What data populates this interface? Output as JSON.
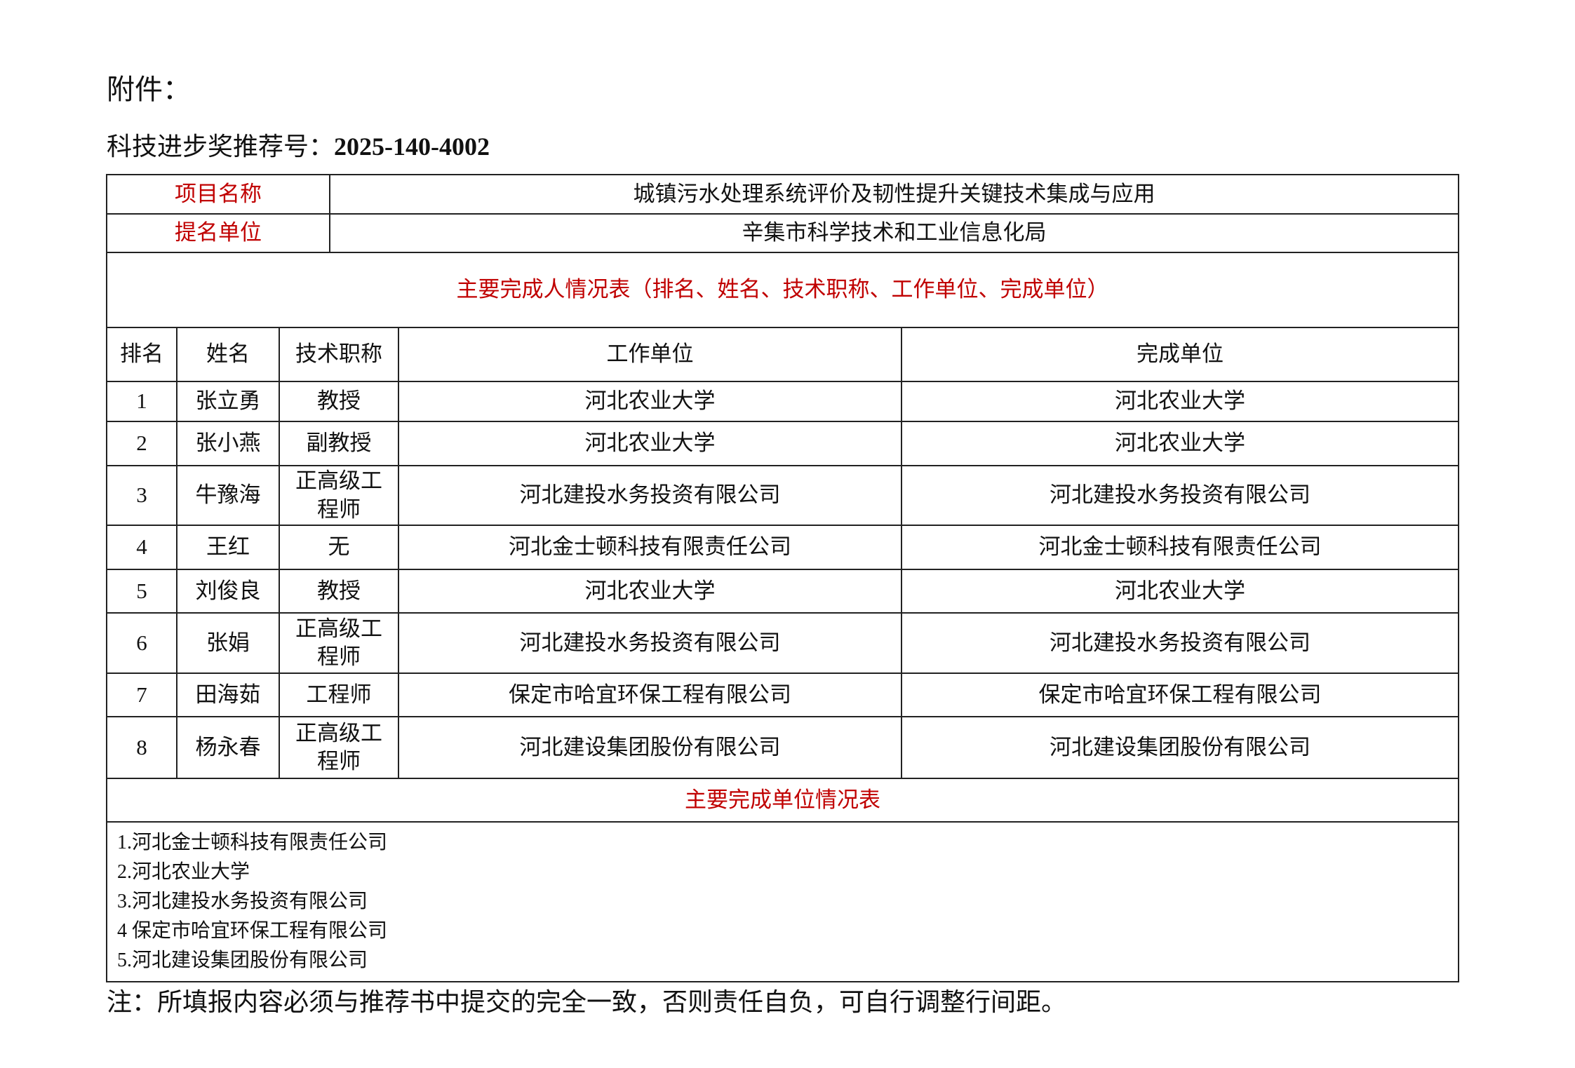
{
  "attachment_label": "附件：",
  "recommendation": {
    "label": "科技进步奖推荐号：",
    "number": "2025-140-4002"
  },
  "project": {
    "label": "项目名称",
    "value": "城镇污水处理系统评价及韧性提升关键技术集成与应用"
  },
  "nominator": {
    "label": "提名单位",
    "value": "辛集市科学技术和工业信息化局"
  },
  "persons_section_title": "主要完成人情况表（排名、姓名、技术职称、工作单位、完成单位）",
  "columns": [
    "排名",
    "姓名",
    "技术职称",
    "工作单位",
    "完成单位"
  ],
  "persons": [
    {
      "rank": "1",
      "name": "张立勇",
      "title": "教授",
      "work": "河北农业大学",
      "unit": "河北农业大学"
    },
    {
      "rank": "2",
      "name": "张小燕",
      "title": "副教授",
      "work": "河北农业大学",
      "unit": "河北农业大学"
    },
    {
      "rank": "3",
      "name": "牛豫海",
      "title": "正高级工程师",
      "work": "河北建投水务投资有限公司",
      "unit": "河北建投水务投资有限公司"
    },
    {
      "rank": "4",
      "name": "王红",
      "title": "无",
      "work": "河北金士顿科技有限责任公司",
      "unit": "河北金士顿科技有限责任公司"
    },
    {
      "rank": "5",
      "name": "刘俊良",
      "title": "教授",
      "work": "河北农业大学",
      "unit": "河北农业大学"
    },
    {
      "rank": "6",
      "name": "张娟",
      "title": "正高级工程师",
      "work": "河北建投水务投资有限公司",
      "unit": "河北建投水务投资有限公司"
    },
    {
      "rank": "7",
      "name": "田海茹",
      "title": "工程师",
      "work": "保定市哈宜环保工程有限公司",
      "unit": "保定市哈宜环保工程有限公司"
    },
    {
      "rank": "8",
      "name": "杨永春",
      "title": "正高级工程师",
      "work": "河北建设集团股份有限公司",
      "unit": "河北建设集团股份有限公司"
    }
  ],
  "units_section_title": "主要完成单位情况表",
  "units": [
    "1.河北金士顿科技有限责任公司",
    "2.河北农业大学",
    "3.河北建投水务投资有限公司",
    "4 保定市哈宜环保工程有限公司",
    "5.河北建设集团股份有限公司"
  ],
  "note": "注：所填报内容必须与推荐书中提交的完全一致，否则责任自负，可自行调整行间距。",
  "colors": {
    "label_red": "#c00000"
  }
}
